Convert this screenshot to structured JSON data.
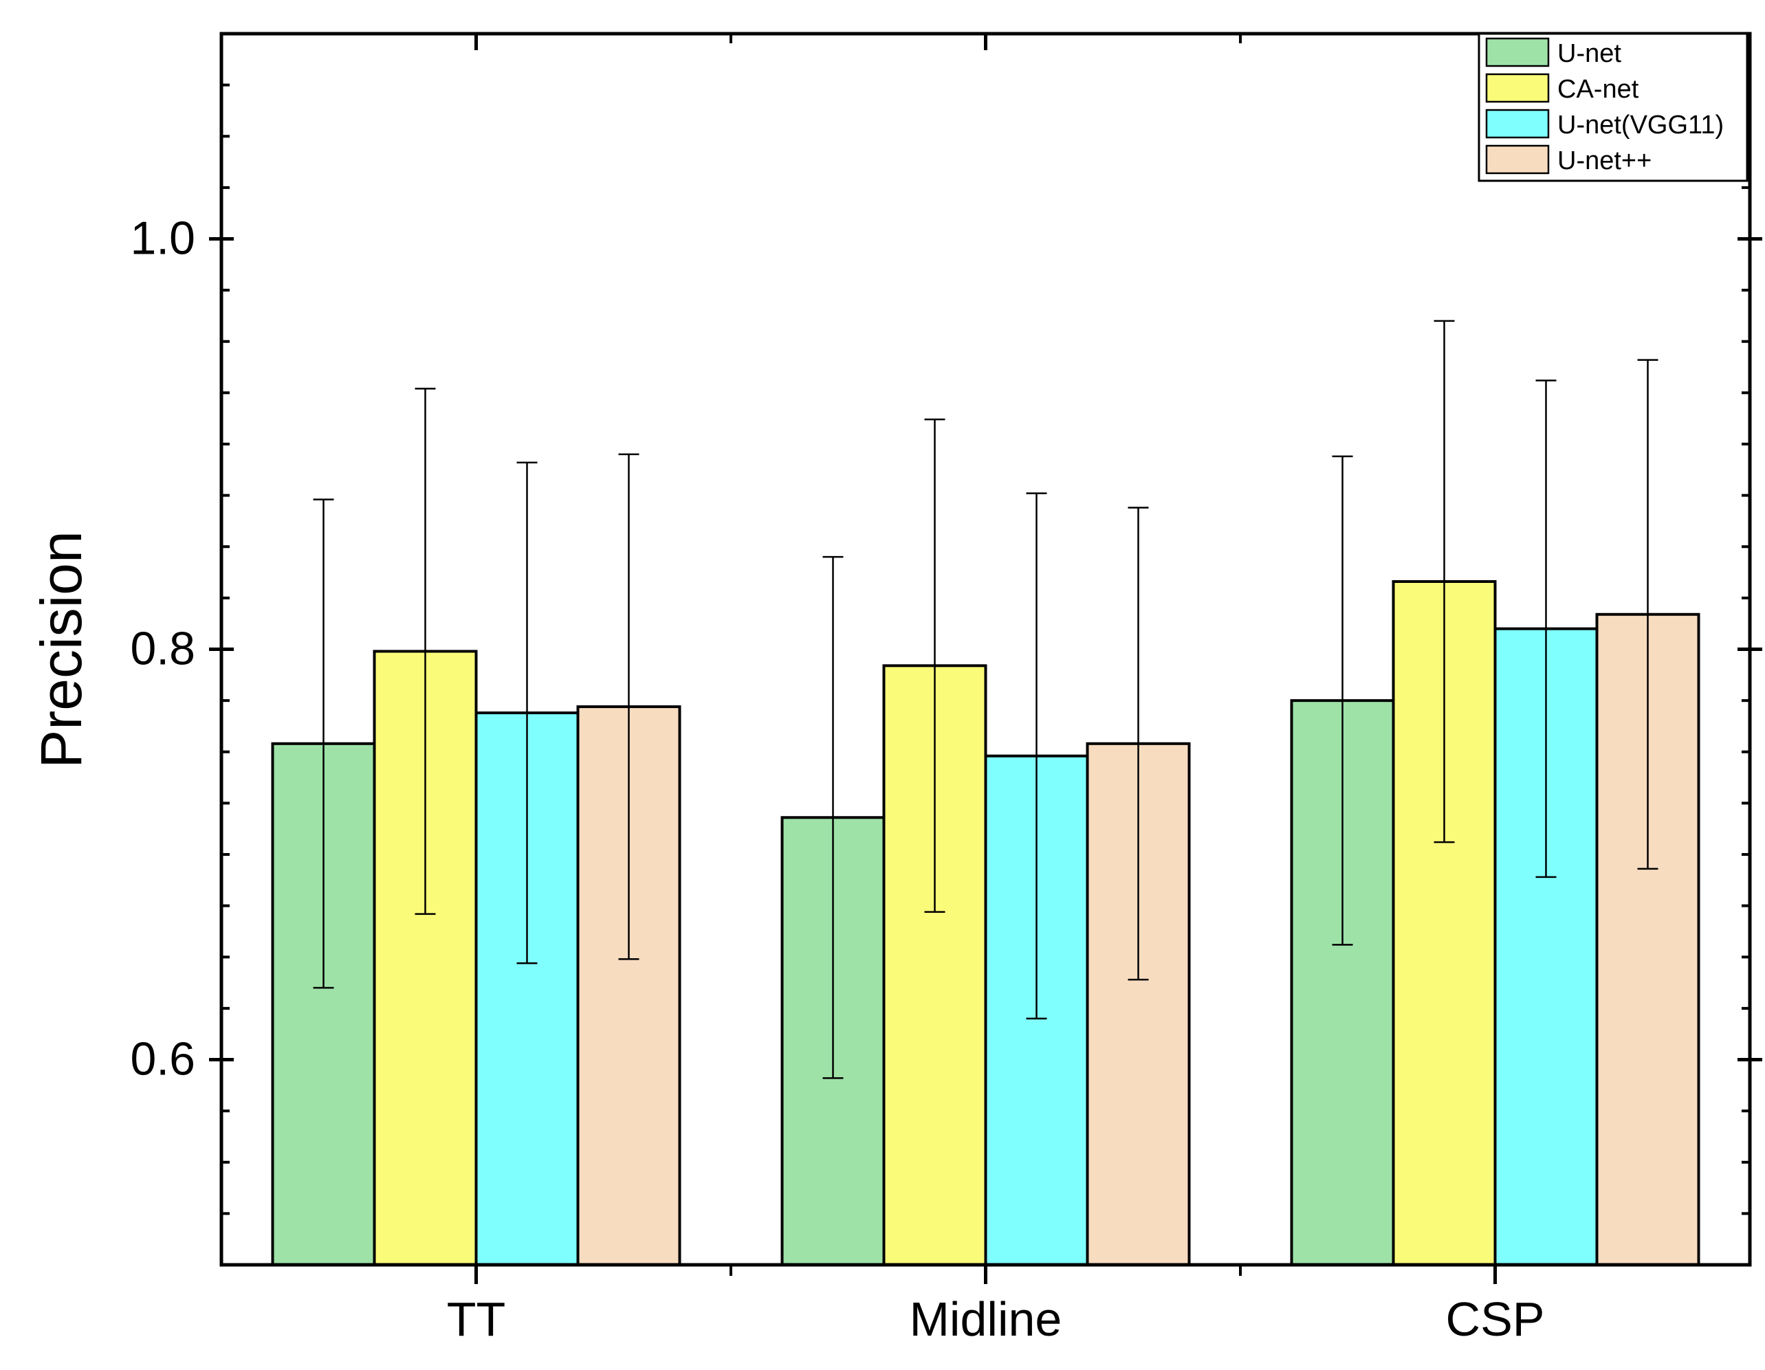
{
  "chart_data": {
    "type": "bar",
    "title": "",
    "xlabel": "",
    "ylabel": "Precision",
    "ylim": [
      0.5,
      1.1
    ],
    "yticks": [
      0.6,
      0.8,
      1.0
    ],
    "ytick_labels": [
      "0.6",
      "0.8",
      "1.0"
    ],
    "categories": [
      "TT",
      "Midline",
      "CSP"
    ],
    "grid": false,
    "legend_position": "top-right",
    "series": [
      {
        "name": "U-net",
        "color": "#9ee2a8",
        "values": [
          0.754,
          0.718,
          0.775
        ],
        "errors": [
          0.119,
          0.127,
          0.119
        ]
      },
      {
        "name": "CA-net",
        "color": "#fbfb7a",
        "values": [
          0.799,
          0.792,
          0.833
        ],
        "errors": [
          0.128,
          0.12,
          0.127
        ]
      },
      {
        "name": "U-net(VGG11)",
        "color": "#80ffff",
        "values": [
          0.769,
          0.748,
          0.81
        ],
        "errors": [
          0.122,
          0.128,
          0.121
        ]
      },
      {
        "name": "U-net++",
        "color": "#f8dcc0",
        "values": [
          0.772,
          0.754,
          0.817
        ],
        "errors": [
          0.123,
          0.115,
          0.124
        ]
      }
    ]
  }
}
